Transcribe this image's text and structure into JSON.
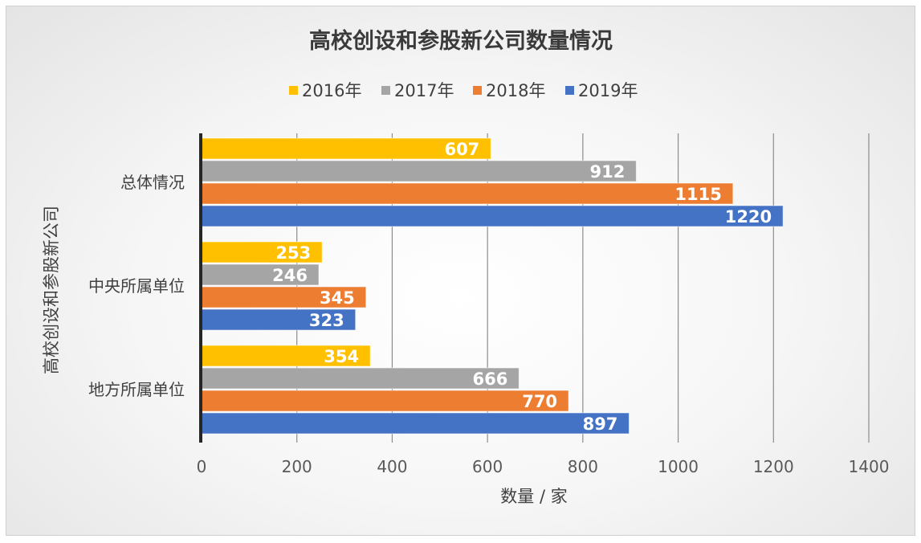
{
  "chart_data": {
    "type": "bar",
    "orientation": "horizontal",
    "title": "高校创设和参股新公司数量情况",
    "xlabel": "数量 / 家",
    "ylabel": "高校创设和参股新公司",
    "xlim": [
      0,
      1400
    ],
    "x_ticks": [
      "0",
      "200",
      "400",
      "600",
      "800",
      "1000",
      "1200",
      "1400"
    ],
    "grid": "vertical",
    "legend_position": "top",
    "categories": [
      "总体情况",
      "中央所属单位",
      "地方所属单位"
    ],
    "series": [
      {
        "name": "2016年",
        "color": "#FFC000",
        "values": [
          607,
          253,
          354
        ]
      },
      {
        "name": "2017年",
        "color": "#A5A5A5",
        "values": [
          912,
          246,
          666
        ]
      },
      {
        "name": "2018年",
        "color": "#ED7D31",
        "values": [
          1115,
          345,
          770
        ]
      },
      {
        "name": "2019年",
        "color": "#4472C4",
        "values": [
          1220,
          323,
          897
        ]
      }
    ]
  }
}
